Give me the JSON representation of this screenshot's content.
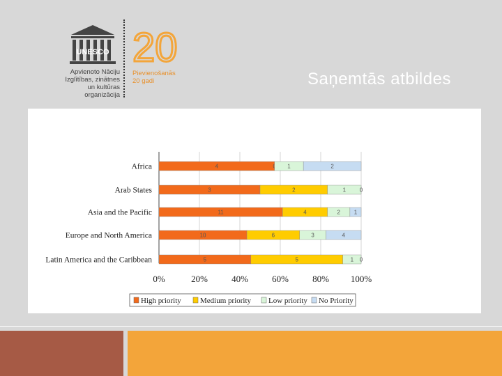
{
  "slide": {
    "title": "Saņemtās atbildes",
    "colors": {
      "background": "#d8d8d8",
      "accent_orange": "#f3a53a",
      "accent_brown": "#a65a45"
    }
  },
  "logo": {
    "org_line1": "Apvienoto Nāciju",
    "org_line2": "Izglītības, zinātnes",
    "org_line3": "un kultūras organizācija",
    "wordmark": "UNESCO",
    "number": "20",
    "anniv_line1": "Pievienošanās",
    "anniv_line2": "20 gadi"
  },
  "chart_data": {
    "type": "bar",
    "orientation": "horizontal-stacked-100",
    "categories": [
      "Africa",
      "Arab States",
      "Asia and the Pacific",
      "Europe and North America",
      "Latin America and the Caribbean"
    ],
    "series": [
      {
        "name": "High priority",
        "color": "#f26a1b",
        "values": [
          4,
          3,
          11,
          10,
          5
        ]
      },
      {
        "name": "Medium priority",
        "color": "#ffcc00",
        "values": [
          0,
          2,
          4,
          6,
          5
        ]
      },
      {
        "name": "Low priority",
        "color": "#d9f5d9",
        "values": [
          1,
          1,
          2,
          3,
          1
        ]
      },
      {
        "name": "No Priority",
        "color": "#c6dcf2",
        "values": [
          2,
          0,
          1,
          4,
          0
        ]
      }
    ],
    "xticks": [
      "0%",
      "20%",
      "40%",
      "60%",
      "80%",
      "100%"
    ],
    "xlim": [
      0,
      100
    ],
    "legend": "bottom"
  }
}
